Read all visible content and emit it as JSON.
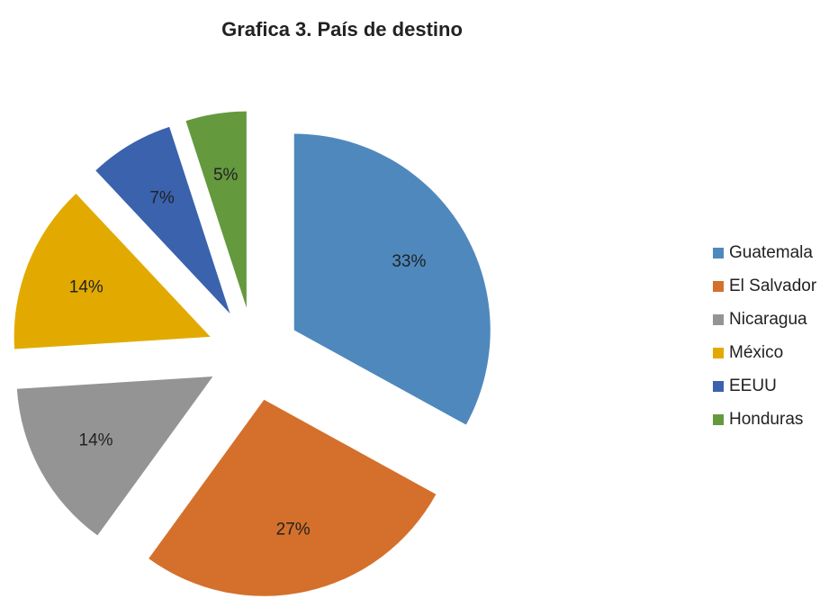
{
  "chart_data": {
    "type": "pie",
    "title": "Grafica 3. País de destino",
    "categories": [
      "Guatemala",
      "El Salvador",
      "Nicaragua",
      "México",
      "EEUU",
      "Honduras"
    ],
    "values": [
      33,
      27,
      14,
      14,
      7,
      5
    ],
    "value_labels": [
      "33%",
      "27%",
      "14%",
      "14%",
      "7%",
      "5%"
    ],
    "colors": [
      "#4f88bd",
      "#d4702b",
      "#949494",
      "#e2aa00",
      "#3a62ad",
      "#64993e"
    ],
    "legend": "right"
  }
}
